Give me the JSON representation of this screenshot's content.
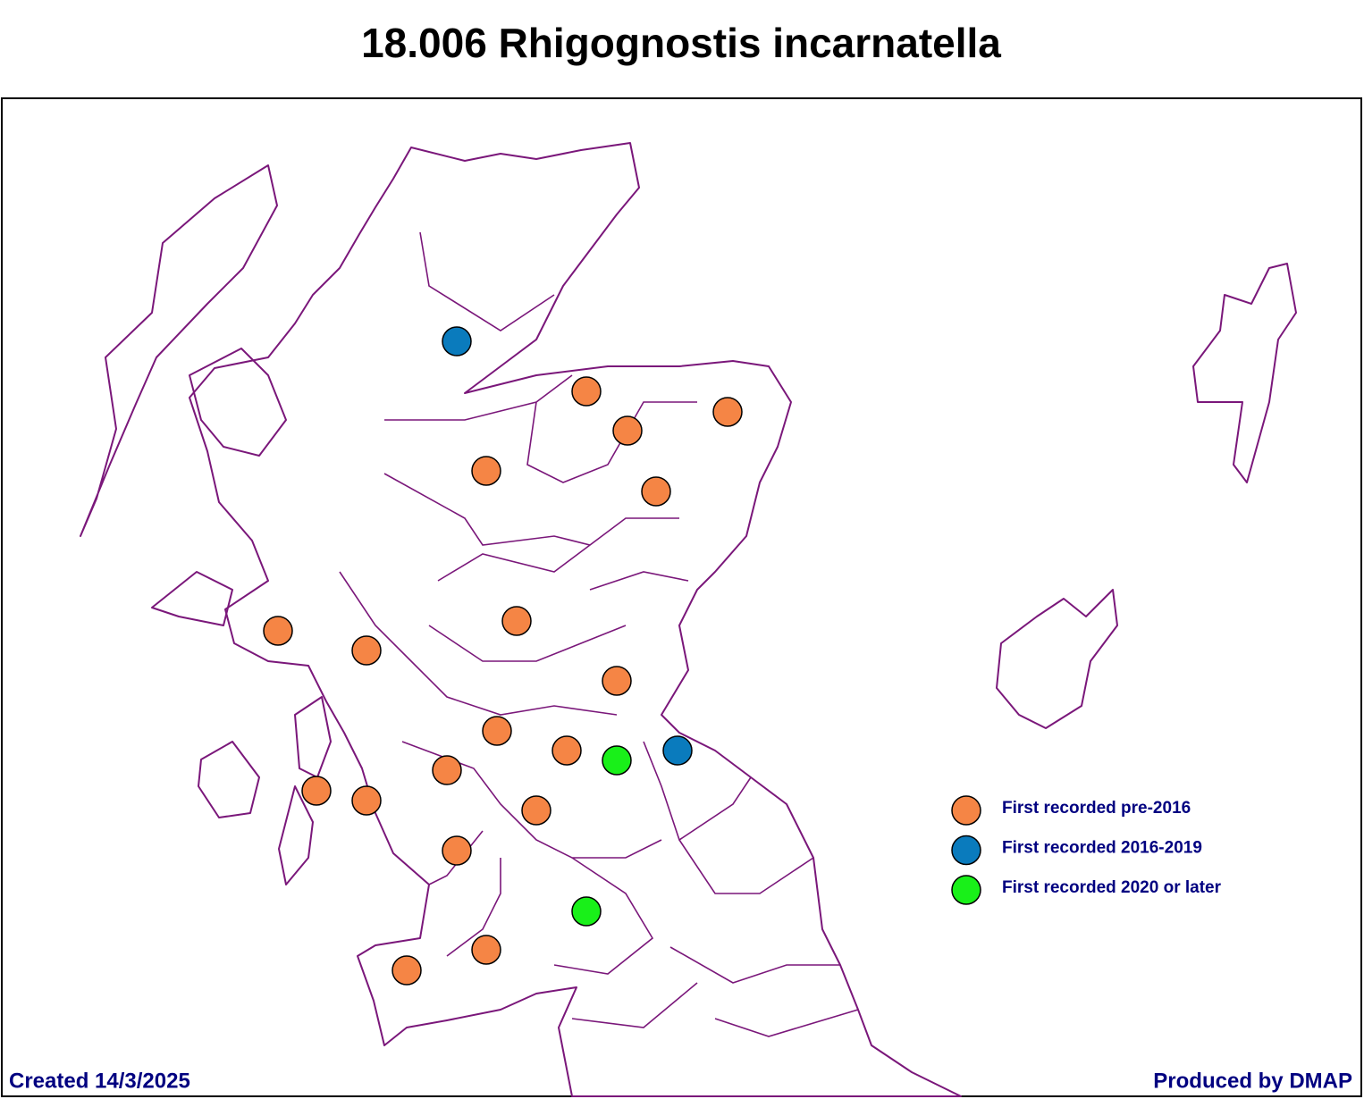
{
  "header": {
    "title": "18.006 Rhigognostis incarnatella"
  },
  "legend": {
    "items": [
      {
        "label": "First recorded pre-2016",
        "color": "#f58545"
      },
      {
        "label": "First recorded 2016-2019",
        "color": "#0a7bbd"
      },
      {
        "label": "First recorded 2020 or later",
        "color": "#19f019"
      }
    ]
  },
  "footer": {
    "created": "Created 14/3/2025",
    "producer": "Produced by DMAP"
  }
}
